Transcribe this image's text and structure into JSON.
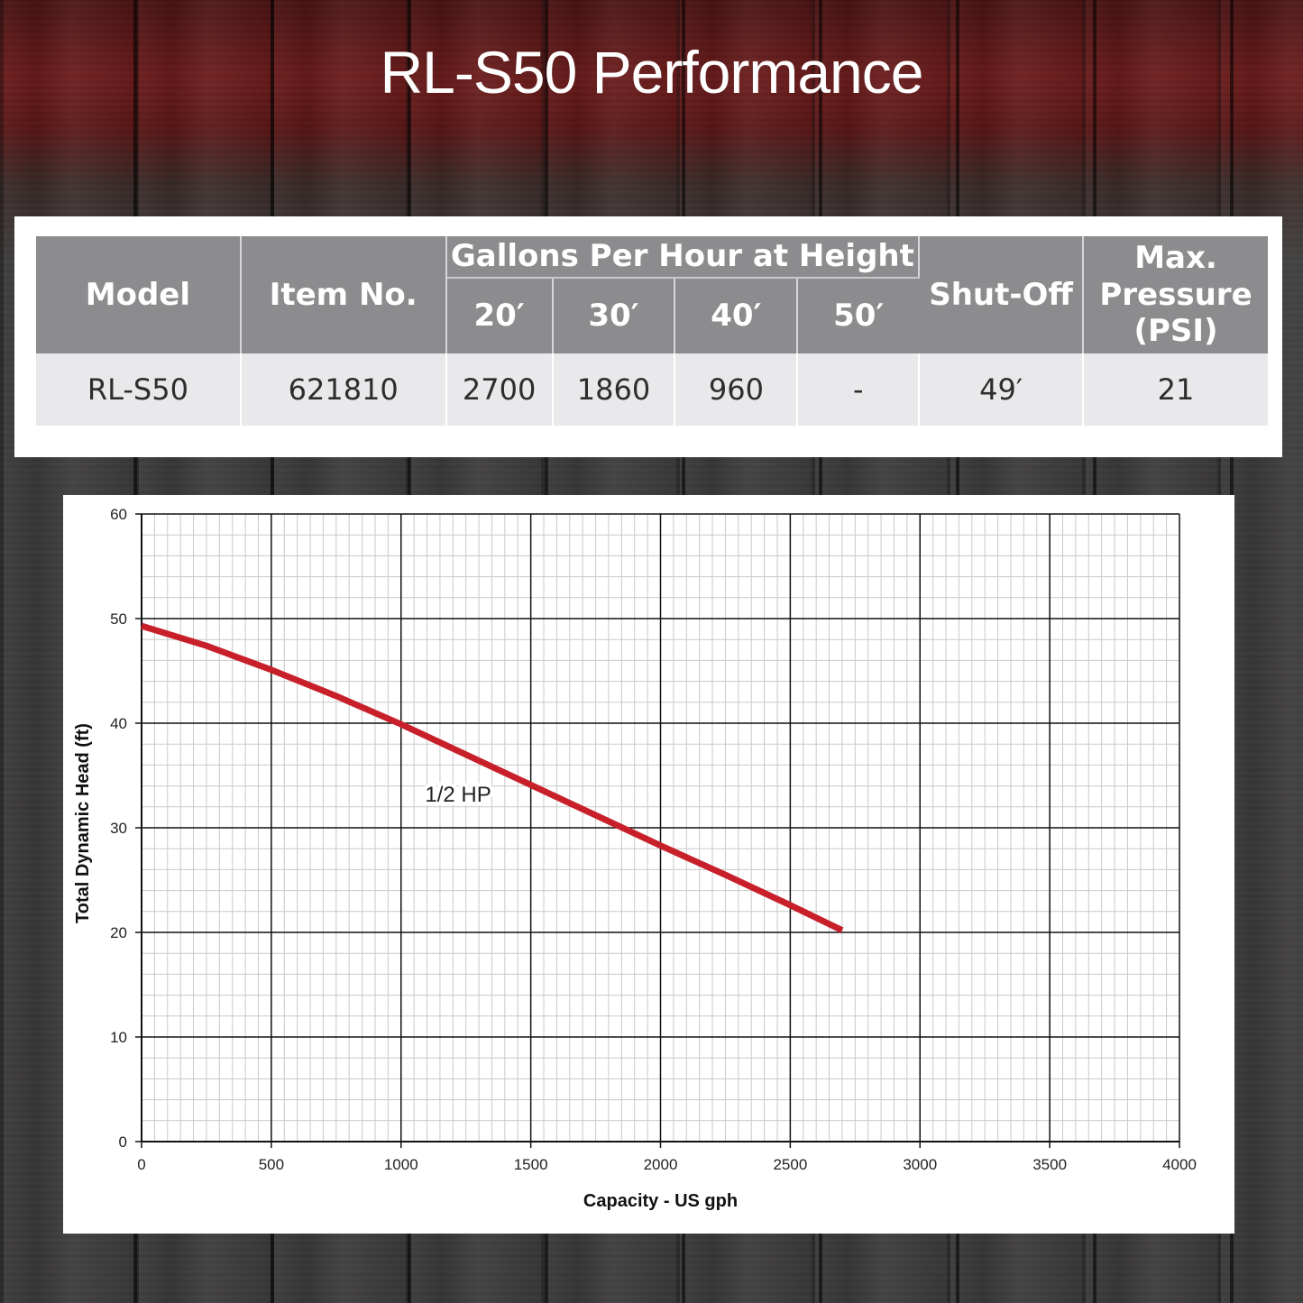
{
  "title": "RL-S50 Performance",
  "table": {
    "headers": {
      "model": "Model",
      "item_no": "Item No.",
      "group": "Gallons Per Hour at Height",
      "heights": [
        "20′",
        "30′",
        "40′",
        "50′"
      ],
      "shut_off": "Shut-Off",
      "max_pressure": [
        "Max.",
        "Pressure",
        "(PSI)"
      ]
    },
    "row": {
      "model": "RL-S50",
      "item_no": "621810",
      "gph": [
        "2700",
        "1860",
        "960",
        "-"
      ],
      "shut_off": "49′",
      "max_pressure": "21"
    }
  },
  "chart_data": {
    "type": "line",
    "title": "",
    "xlabel": "Capacity - US gph",
    "ylabel": "Total Dynamic Head (ft)",
    "xlim": [
      0,
      4000
    ],
    "ylim": [
      0,
      60
    ],
    "x_ticks": [
      "0",
      "500",
      "1000",
      "1500",
      "2000",
      "2500",
      "3000",
      "3500",
      "4000"
    ],
    "y_ticks": [
      "0",
      "10",
      "20",
      "30",
      "40",
      "50",
      "60"
    ],
    "grid": true,
    "line_color": "#c8202a",
    "annotation": "1/2 HP",
    "series": [
      {
        "name": "1/2 HP",
        "x": [
          0,
          250,
          500,
          750,
          1000,
          1250,
          1500,
          1750,
          2000,
          2250,
          2500,
          2700
        ],
        "y": [
          49.3,
          47.4,
          45.1,
          42.6,
          39.9,
          37.0,
          34.1,
          31.2,
          28.3,
          25.5,
          22.6,
          20.2
        ]
      }
    ]
  }
}
